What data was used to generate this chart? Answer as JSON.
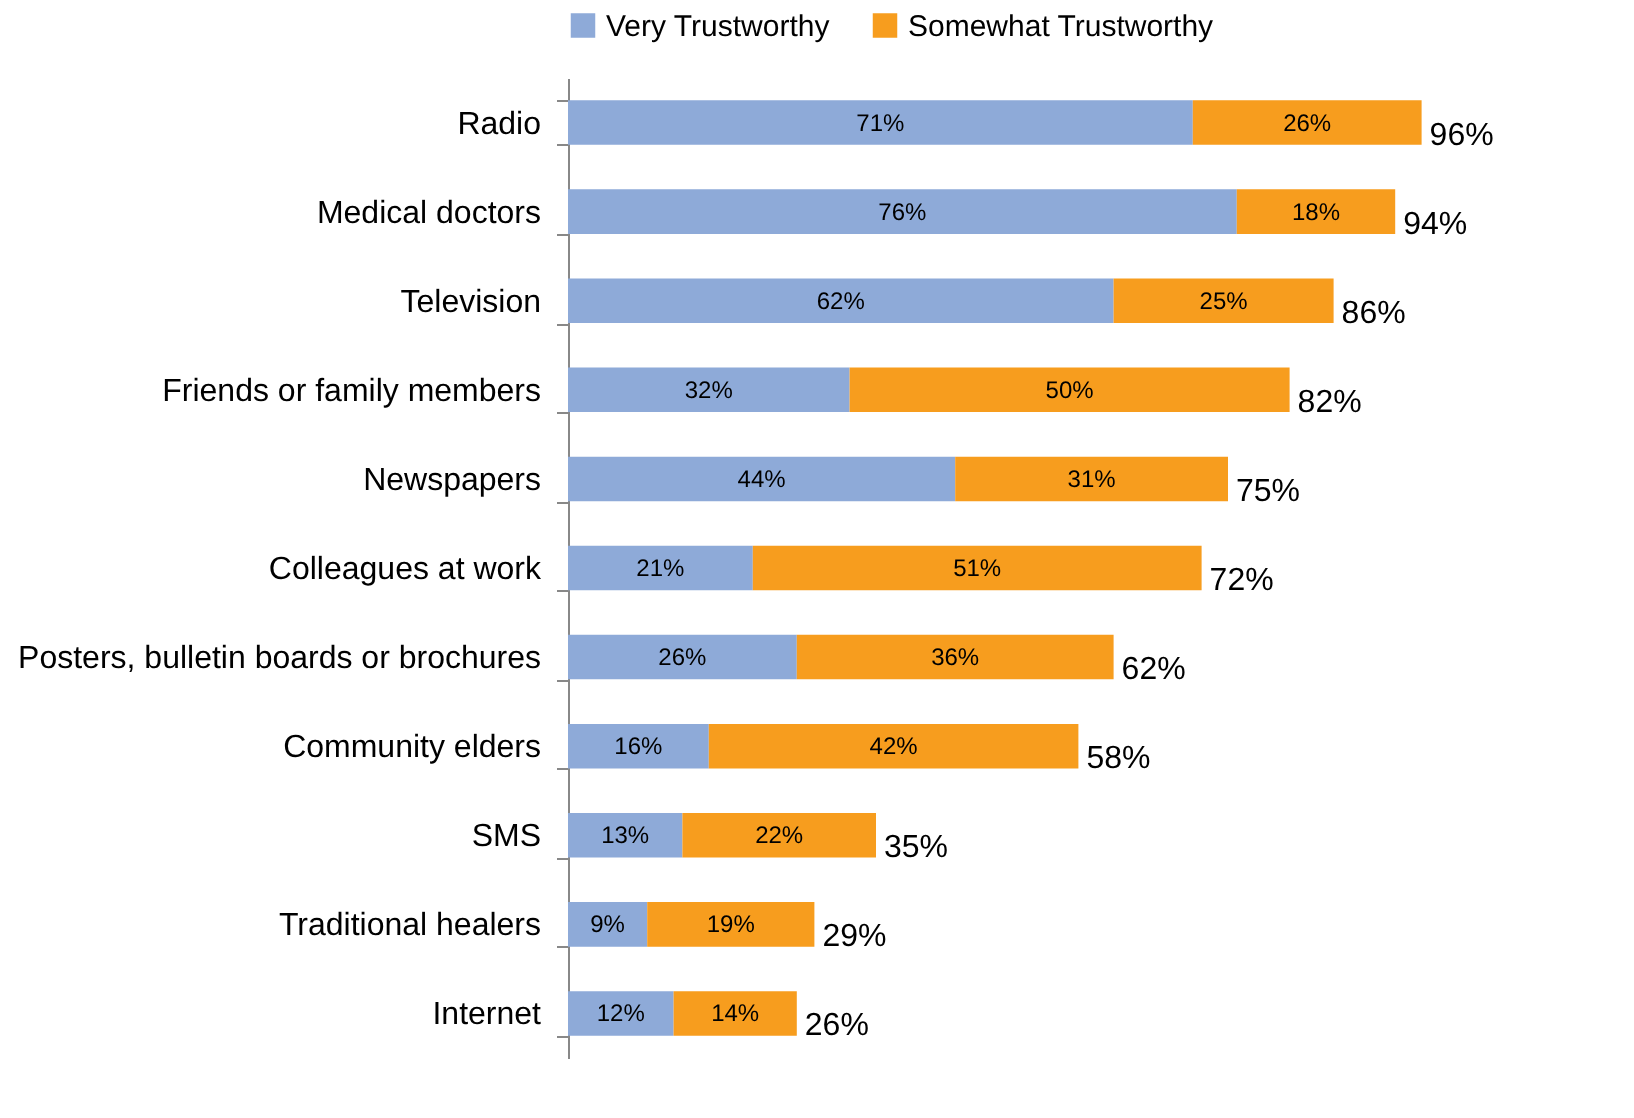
{
  "chart_data": {
    "type": "bar",
    "orientation": "horizontal",
    "stacked": true,
    "legend": "top",
    "grid": false,
    "categories": [
      "Radio",
      "Medical doctors",
      "Television",
      "Friends or family  members",
      "Newspapers",
      "Colleagues at work",
      "Posters, bulletin boards or brochures",
      "Community elders",
      "SMS",
      "Traditional healers",
      "Internet"
    ],
    "series": [
      {
        "name": "Very Trustworthy",
        "color": "#8eaad8",
        "values": [
          71,
          76,
          62,
          32,
          44,
          21,
          26,
          16,
          13,
          9,
          12
        ],
        "value_labels": [
          "71%",
          "76%",
          "62%",
          "32%",
          "44%",
          "21%",
          "26%",
          "16%",
          "13%",
          "9%",
          "12%"
        ]
      },
      {
        "name": "Somewhat Trustworthy",
        "color": "#f79d1e",
        "values": [
          26,
          18,
          25,
          50,
          31,
          51,
          36,
          42,
          22,
          19,
          14
        ],
        "value_labels": [
          "26%",
          "18%",
          "25%",
          "50%",
          "31%",
          "51%",
          "36%",
          "42%",
          "22%",
          "19%",
          "14%"
        ]
      }
    ],
    "totals": [
      "96%",
      "94%",
      "86%",
      "82%",
      "75%",
      "72%",
      "62%",
      "58%",
      "35%",
      "29%",
      "26%"
    ]
  }
}
